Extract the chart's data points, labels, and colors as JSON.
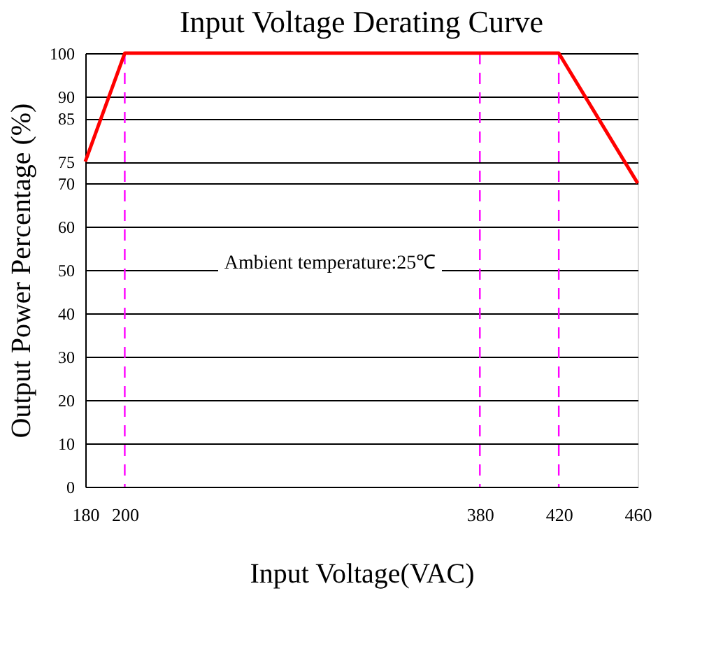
{
  "chart_data": {
    "type": "line",
    "title": "Input Voltage Derating Curve",
    "xlabel": "Input Voltage(VAC)",
    "ylabel": "Output Power Percentage (%)",
    "x": [
      180,
      200,
      420,
      460
    ],
    "series": [
      {
        "color": "#ff0000",
        "values": [
          75,
          100,
          100,
          70
        ]
      }
    ],
    "xlim": [
      180,
      460
    ],
    "xticks": [
      180,
      200,
      380,
      420,
      460
    ],
    "ylim": [
      0,
      100
    ],
    "yticks": [
      0,
      10,
      20,
      30,
      40,
      50,
      60,
      70,
      75,
      85,
      90,
      100
    ],
    "grid": "y",
    "marker": "none",
    "line_style": "solid",
    "ref_lines": [
      {
        "axis": "x",
        "value": 200,
        "color": "#ff00ff",
        "line_style": "dashed"
      },
      {
        "axis": "x",
        "value": 380,
        "color": "#ff00ff",
        "line_style": "dashed"
      },
      {
        "axis": "x",
        "value": 420,
        "color": "#ff00ff",
        "line_style": "dashed"
      }
    ],
    "annotations": [
      "Ambient temperature:25℃"
    ]
  }
}
